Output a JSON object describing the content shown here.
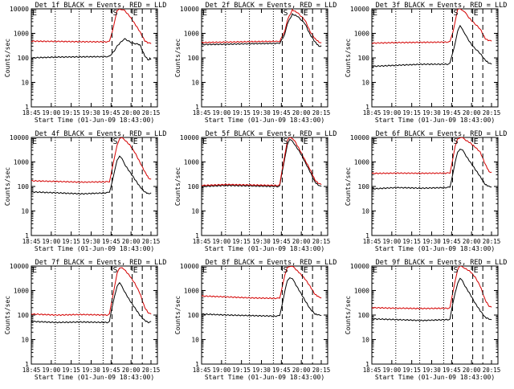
{
  "chart_data": [
    {
      "type": "line",
      "title": "Det 1f BLACK = Events, RED = LLD",
      "xlabel": "Start Time (01-Jun-09 18:43:00)",
      "ylabel": "Counts/sec",
      "x_ticks": [
        "18:45",
        "19:00",
        "19:15",
        "19:30",
        "19:45",
        "20:00",
        "20:15"
      ],
      "y_ticks": [
        "1",
        "10",
        "100",
        "1000",
        "10000"
      ],
      "ylim": [
        1,
        10000
      ],
      "scale": "log",
      "markers": {
        "S": "S",
        "E": "E"
      },
      "series": [
        {
          "color": "#000000",
          "x": [
            0,
            20,
            40,
            60,
            62,
            66,
            68,
            72,
            74,
            80,
            86,
            90,
            93,
            94,
            95
          ],
          "y": [
            100,
            108,
            110,
            112,
            115,
            200,
            300,
            500,
            600,
            400,
            350,
            120,
            80,
            95,
            90
          ]
        },
        {
          "color": "#d40000",
          "x": [
            0,
            20,
            40,
            60,
            62,
            64,
            66,
            68,
            70,
            72,
            74,
            78,
            82,
            86,
            90,
            93,
            95
          ],
          "y": [
            480,
            470,
            455,
            450,
            460,
            1100,
            3000,
            8000,
            10000,
            9500,
            8500,
            5000,
            2500,
            1200,
            500,
            400,
            380
          ]
        }
      ]
    },
    {
      "type": "line",
      "title": "Det 2f BLACK = Events, RED = LLD",
      "xlabel": "Start Time (01-Jun-09 18:43:00)",
      "ylabel": "Counts/sec",
      "x_ticks": [
        "18:45",
        "19:00",
        "19:15",
        "19:30",
        "19:45",
        "20:00",
        "20:15"
      ],
      "y_ticks": [
        "1",
        "10",
        "100",
        "1000",
        "10000"
      ],
      "ylim": [
        1,
        10000
      ],
      "scale": "log",
      "markers": {
        "S": "S",
        "E": "E"
      },
      "series": [
        {
          "color": "#000000",
          "x": [
            0,
            20,
            40,
            60,
            62,
            66,
            68,
            72,
            76,
            82,
            86,
            90,
            93,
            95
          ],
          "y": [
            350,
            360,
            380,
            390,
            400,
            900,
            2500,
            6000,
            5000,
            2500,
            900,
            450,
            300,
            310
          ]
        },
        {
          "color": "#d40000",
          "x": [
            0,
            20,
            40,
            60,
            62,
            66,
            68,
            72,
            76,
            82,
            86,
            90,
            93,
            95
          ],
          "y": [
            420,
            440,
            460,
            470,
            480,
            1200,
            3500,
            9000,
            7000,
            3500,
            1200,
            600,
            450,
            420
          ]
        }
      ]
    },
    {
      "type": "line",
      "title": "Det 3f BLACK = Events, RED = LLD",
      "xlabel": "Start Time (01-Jun-09 18:43:00)",
      "ylabel": "Counts/sec",
      "x_ticks": [
        "18:45",
        "19:00",
        "19:15",
        "19:30",
        "19:45",
        "20:00",
        "20:15"
      ],
      "y_ticks": [
        "1",
        "10",
        "100",
        "1000",
        "10000"
      ],
      "ylim": [
        1,
        10000
      ],
      "scale": "log",
      "markers": {
        "S": "S",
        "E": "E"
      },
      "series": [
        {
          "color": "#000000",
          "x": [
            0,
            20,
            40,
            60,
            62,
            64,
            66,
            68,
            70,
            72,
            74,
            76,
            80,
            86,
            90,
            93,
            95
          ],
          "y": [
            45,
            50,
            55,
            55,
            60,
            150,
            400,
            1200,
            2000,
            1500,
            900,
            600,
            300,
            150,
            80,
            60,
            55
          ]
        },
        {
          "color": "#d40000",
          "x": [
            0,
            20,
            40,
            60,
            62,
            64,
            66,
            68,
            70,
            72,
            74,
            76,
            80,
            86,
            90,
            93,
            95
          ],
          "y": [
            400,
            420,
            430,
            440,
            450,
            1000,
            3000,
            9000,
            10000,
            9000,
            7000,
            5000,
            3000,
            1500,
            600,
            500,
            480
          ]
        }
      ]
    },
    {
      "type": "line",
      "title": "Det 4f BLACK = Events, RED = LLD",
      "xlabel": "Start Time (01-Jun-09 18:43:00)",
      "ylabel": "Counts/sec",
      "x_ticks": [
        "18:45",
        "19:00",
        "19:15",
        "19:30",
        "19:45",
        "20:00",
        "20:15"
      ],
      "y_ticks": [
        "1",
        "10",
        "100",
        "1000",
        "10000"
      ],
      "ylim": [
        1,
        10000
      ],
      "scale": "log",
      "markers": {
        "S": "S",
        "E": "E"
      },
      "series": [
        {
          "color": "#000000",
          "x": [
            0,
            20,
            40,
            60,
            62,
            64,
            66,
            68,
            70,
            72,
            74,
            78,
            82,
            86,
            90,
            93,
            95
          ],
          "y": [
            60,
            55,
            50,
            55,
            60,
            150,
            400,
            1200,
            1800,
            1300,
            800,
            400,
            200,
            100,
            60,
            50,
            55
          ]
        },
        {
          "color": "#d40000",
          "x": [
            0,
            20,
            40,
            60,
            62,
            64,
            66,
            68,
            70,
            72,
            74,
            78,
            82,
            86,
            90,
            93,
            95
          ],
          "y": [
            170,
            160,
            150,
            155,
            160,
            500,
            1500,
            5000,
            9000,
            9500,
            8000,
            5000,
            2500,
            1000,
            400,
            220,
            200
          ]
        }
      ]
    },
    {
      "type": "line",
      "title": "Det 5f BLACK = Events, RED = LLD",
      "xlabel": "Start Time (01-Jun-09 18:43:00)",
      "ylabel": "Counts/sec",
      "x_ticks": [
        "18:45",
        "19:00",
        "19:15",
        "19:30",
        "19:45",
        "20:00",
        "20:15"
      ],
      "y_ticks": [
        "1",
        "10",
        "100",
        "1000",
        "10000"
      ],
      "ylim": [
        1,
        10000
      ],
      "scale": "log",
      "markers": {
        "S": "S",
        "E": "E"
      },
      "series": [
        {
          "color": "#000000",
          "x": [
            0,
            20,
            40,
            60,
            62,
            64,
            66,
            68,
            70,
            72,
            74,
            78,
            82,
            86,
            90,
            93,
            95
          ],
          "y": [
            100,
            110,
            105,
            100,
            105,
            400,
            1500,
            5000,
            8000,
            7500,
            5000,
            2500,
            1000,
            400,
            150,
            110,
            100
          ]
        },
        {
          "color": "#d40000",
          "x": [
            0,
            20,
            40,
            60,
            62,
            64,
            66,
            68,
            70,
            72,
            74,
            78,
            82,
            86,
            90,
            93,
            95
          ],
          "y": [
            110,
            120,
            115,
            110,
            115,
            500,
            2000,
            7000,
            10000,
            9500,
            7000,
            3000,
            1200,
            500,
            180,
            130,
            120
          ]
        }
      ]
    },
    {
      "type": "line",
      "title": "Det 6f BLACK = Events, RED = LLD",
      "xlabel": "Start Time (01-Jun-09 18:43:00)",
      "ylabel": "Counts/sec",
      "x_ticks": [
        "18:45",
        "19:00",
        "19:15",
        "19:30",
        "19:45",
        "20:00",
        "20:15"
      ],
      "y_ticks": [
        "1",
        "10",
        "100",
        "1000",
        "10000"
      ],
      "ylim": [
        1,
        10000
      ],
      "scale": "log",
      "markers": {
        "S": "S",
        "E": "E"
      },
      "series": [
        {
          "color": "#000000",
          "x": [
            0,
            20,
            40,
            60,
            62,
            64,
            66,
            68,
            70,
            72,
            74,
            78,
            82,
            86,
            90,
            93,
            95
          ],
          "y": [
            80,
            90,
            85,
            90,
            95,
            300,
            900,
            2500,
            3500,
            3000,
            2000,
            1000,
            500,
            250,
            120,
            100,
            95
          ]
        },
        {
          "color": "#d40000",
          "x": [
            0,
            20,
            40,
            60,
            62,
            64,
            66,
            68,
            70,
            72,
            74,
            78,
            82,
            86,
            90,
            93,
            95
          ],
          "y": [
            340,
            350,
            345,
            350,
            360,
            1200,
            4000,
            9000,
            10000,
            9500,
            8000,
            6000,
            4000,
            2500,
            800,
            400,
            380
          ]
        }
      ]
    },
    {
      "type": "line",
      "title": "Det 7f BLACK = Events, RED = LLD",
      "xlabel": "Start Time (01-Jun-09 18:43:00)",
      "ylabel": "Counts/sec",
      "x_ticks": [
        "18:45",
        "19:00",
        "19:15",
        "19:30",
        "19:45",
        "20:00",
        "20:15"
      ],
      "y_ticks": [
        "1",
        "10",
        "100",
        "1000",
        "10000"
      ],
      "ylim": [
        1,
        10000
      ],
      "scale": "log",
      "markers": {
        "S": "S",
        "E": "E"
      },
      "series": [
        {
          "color": "#000000",
          "x": [
            0,
            20,
            40,
            60,
            62,
            64,
            66,
            68,
            70,
            72,
            74,
            78,
            82,
            86,
            90,
            93,
            95
          ],
          "y": [
            55,
            50,
            52,
            50,
            55,
            200,
            600,
            1500,
            2000,
            1500,
            900,
            400,
            200,
            100,
            60,
            50,
            55
          ]
        },
        {
          "color": "#d40000",
          "x": [
            0,
            20,
            40,
            60,
            62,
            64,
            66,
            68,
            70,
            72,
            74,
            78,
            82,
            86,
            90,
            93,
            95
          ],
          "y": [
            110,
            100,
            105,
            100,
            110,
            400,
            1500,
            5000,
            8000,
            9000,
            7000,
            4000,
            2000,
            800,
            200,
            120,
            110
          ]
        }
      ]
    },
    {
      "type": "line",
      "title": "Det 8f BLACK = Events, RED = LLD",
      "xlabel": "Start Time (01-Jun-09 18:43:00)",
      "ylabel": "Counts/sec",
      "x_ticks": [
        "18:45",
        "19:00",
        "19:15",
        "19:30",
        "19:45",
        "20:00",
        "20:15"
      ],
      "y_ticks": [
        "1",
        "10",
        "100",
        "1000",
        "10000"
      ],
      "ylim": [
        1,
        10000
      ],
      "scale": "log",
      "markers": {
        "S": "S",
        "E": "E"
      },
      "series": [
        {
          "color": "#000000",
          "x": [
            0,
            20,
            40,
            60,
            62,
            64,
            66,
            68,
            70,
            72,
            74,
            78,
            82,
            86,
            90,
            93,
            95
          ],
          "y": [
            110,
            100,
            95,
            90,
            95,
            300,
            900,
            2500,
            3500,
            3000,
            2000,
            900,
            400,
            180,
            110,
            100,
            95
          ]
        },
        {
          "color": "#d40000",
          "x": [
            0,
            20,
            40,
            60,
            62,
            64,
            66,
            68,
            70,
            72,
            74,
            78,
            82,
            86,
            90,
            93,
            95
          ],
          "y": [
            600,
            550,
            500,
            480,
            500,
            1500,
            4000,
            9000,
            10000,
            9500,
            8000,
            5000,
            3000,
            1500,
            700,
            550,
            500
          ]
        }
      ]
    },
    {
      "type": "line",
      "title": "Det 9f BLACK = Events, RED = LLD",
      "xlabel": "Start Time (01-Jun-09 18:43:00)",
      "ylabel": "Counts/sec",
      "x_ticks": [
        "18:45",
        "19:00",
        "19:15",
        "19:30",
        "19:45",
        "20:00",
        "20:15"
      ],
      "y_ticks": [
        "1",
        "10",
        "100",
        "1000",
        "10000"
      ],
      "ylim": [
        1,
        10000
      ],
      "scale": "log",
      "markers": {
        "S": "S",
        "E": "E"
      },
      "series": [
        {
          "color": "#000000",
          "x": [
            0,
            20,
            40,
            60,
            62,
            64,
            66,
            68,
            70,
            72,
            74,
            78,
            82,
            86,
            90,
            93,
            95
          ],
          "y": [
            70,
            65,
            60,
            65,
            70,
            250,
            800,
            2000,
            3000,
            2500,
            1500,
            700,
            300,
            150,
            80,
            70,
            65
          ]
        },
        {
          "color": "#d40000",
          "x": [
            0,
            20,
            40,
            60,
            62,
            64,
            66,
            68,
            70,
            72,
            74,
            78,
            82,
            86,
            90,
            93,
            95
          ],
          "y": [
            200,
            190,
            185,
            190,
            200,
            700,
            2500,
            7000,
            10000,
            9500,
            8000,
            6000,
            3500,
            1500,
            400,
            230,
            210
          ]
        }
      ]
    }
  ]
}
